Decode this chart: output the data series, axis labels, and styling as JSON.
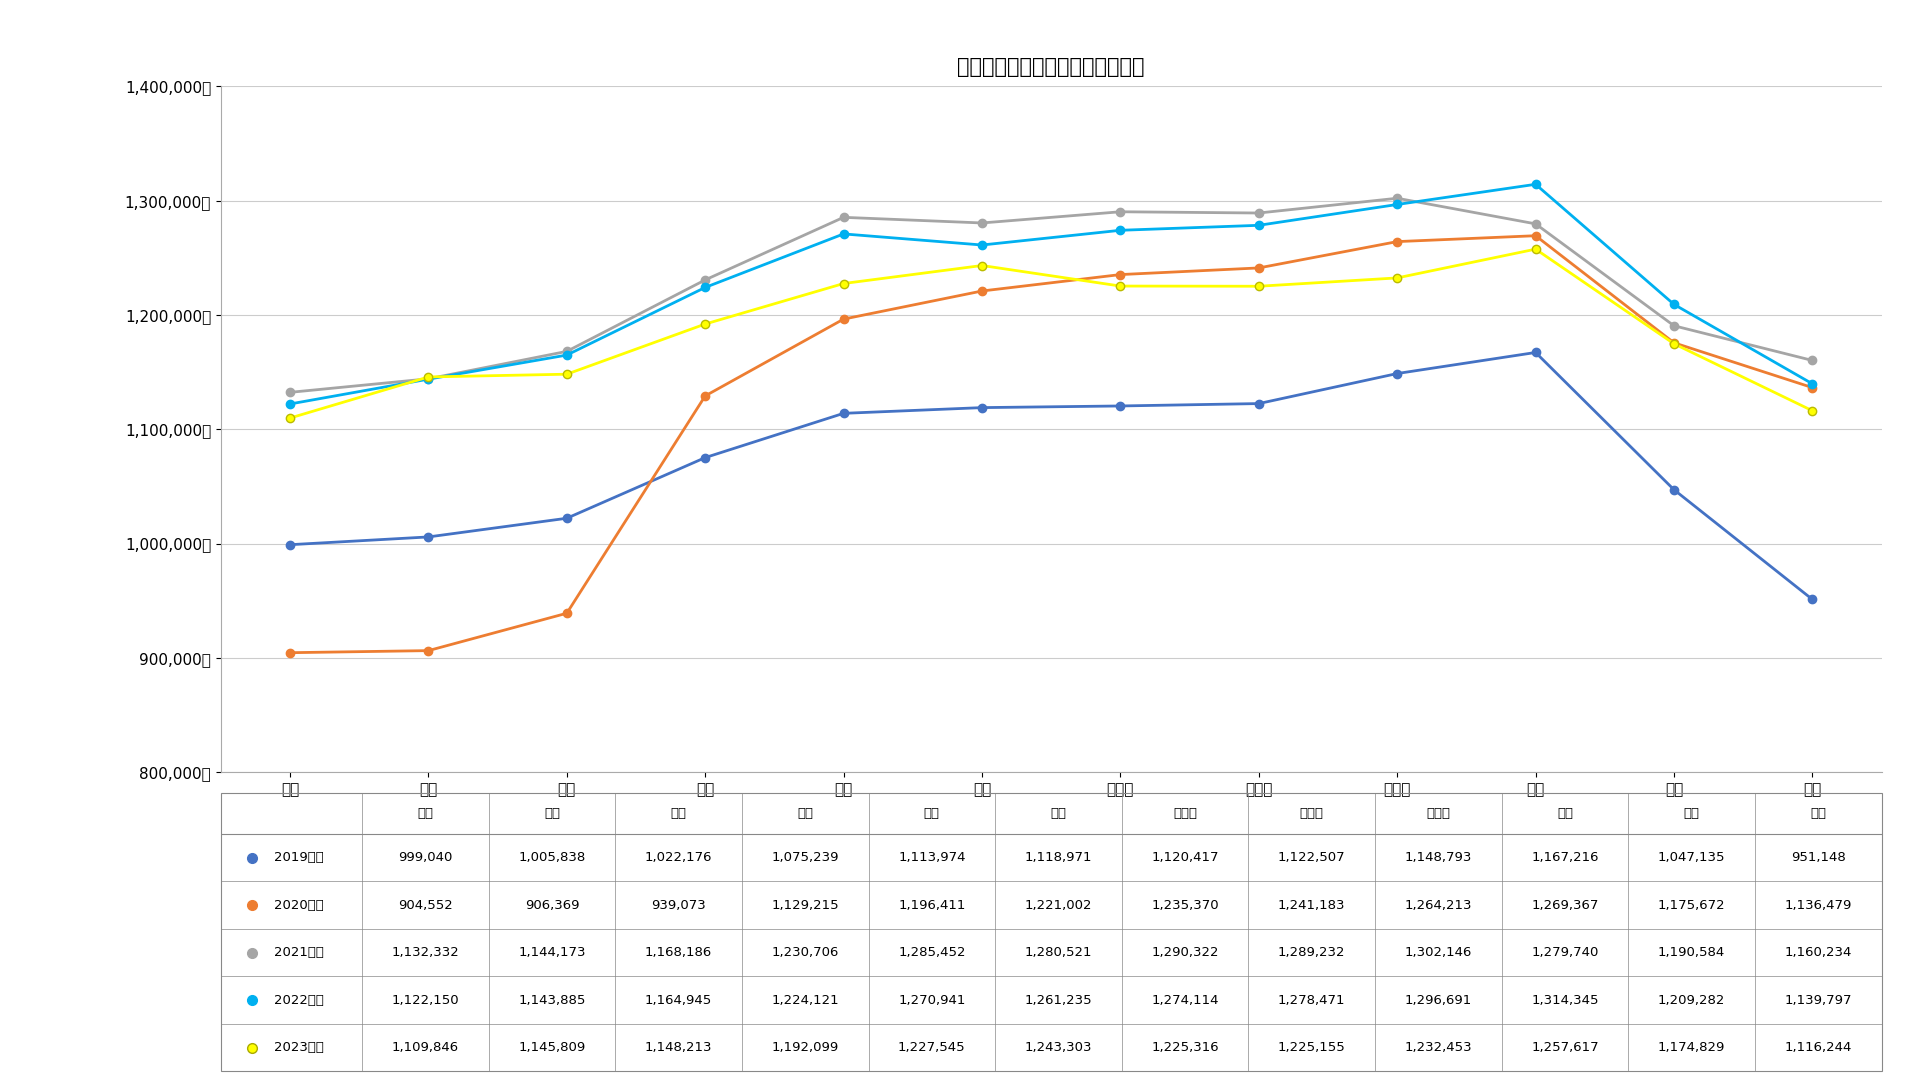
{
  "title": "学習塩の「月別・受講生数」推移",
  "months": [
    "４月",
    "５月",
    "６月",
    "７月",
    "８月",
    "９月",
    "１０月",
    "１１月",
    "１２月",
    "１月",
    "２月",
    "３月"
  ],
  "series": [
    {
      "label": "2019年度",
      "color": "#4472C4",
      "values": [
        999040,
        1005838,
        1022176,
        1075239,
        1113974,
        1118971,
        1120417,
        1122507,
        1148793,
        1167216,
        1047135,
        951148
      ]
    },
    {
      "label": "2020年度",
      "color": "#ED7D31",
      "values": [
        904552,
        906369,
        939073,
        1129215,
        1196411,
        1221002,
        1235370,
        1241183,
        1264213,
        1269367,
        1175672,
        1136479
      ]
    },
    {
      "label": "2021年度",
      "color": "#A5A5A5",
      "values": [
        1132332,
        1144173,
        1168186,
        1230706,
        1285452,
        1280521,
        1290322,
        1289232,
        1302146,
        1279740,
        1190584,
        1160234
      ]
    },
    {
      "label": "2022年度",
      "color": "#00B0F0",
      "values": [
        1122150,
        1143885,
        1164945,
        1224121,
        1270941,
        1261235,
        1274114,
        1278471,
        1296691,
        1314345,
        1209282,
        1139797
      ]
    },
    {
      "label": "2023年度",
      "color": "#FFFF00",
      "values": [
        1109846,
        1145809,
        1148213,
        1192099,
        1227545,
        1243303,
        1225316,
        1225155,
        1232453,
        1257617,
        1174829,
        1116244
      ]
    }
  ],
  "ylim": [
    800000,
    1400000
  ],
  "yticks": [
    800000,
    900000,
    1000000,
    1100000,
    1200000,
    1300000,
    1400000
  ],
  "background_color": "#FFFFFF",
  "grid_color": "#CCCCCC",
  "title_fontsize": 15,
  "tick_fontsize": 11,
  "table_fontsize": 9.5
}
